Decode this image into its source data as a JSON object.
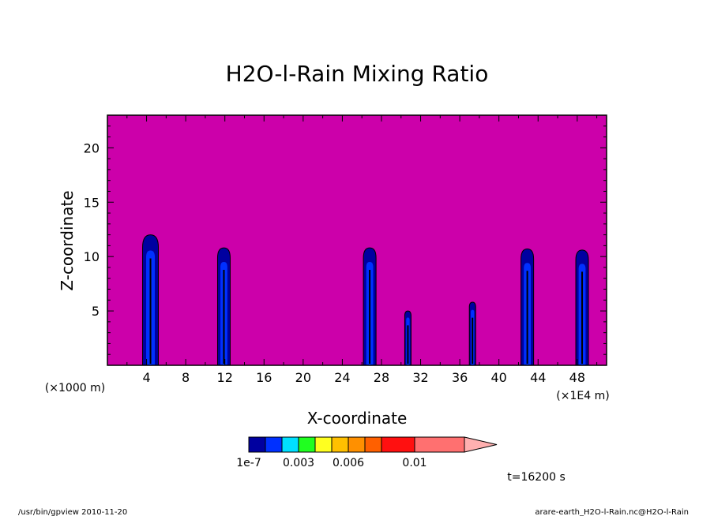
{
  "chart_data": {
    "type": "heatmap",
    "title": "H2O-l-Rain Mixing Ratio",
    "xlabel": "X-coordinate",
    "ylabel": "Z-coordinate",
    "x_unit_left": "(×1000 m)",
    "x_unit_right": "(×1E4 m)",
    "xlim": [
      0,
      51
    ],
    "ylim": [
      0,
      23
    ],
    "x_ticks": [
      4,
      8,
      12,
      16,
      20,
      24,
      28,
      32,
      36,
      40,
      44,
      48
    ],
    "y_ticks": [
      5,
      10,
      15,
      20
    ],
    "background_color": "#cc00aa",
    "rain_cells": [
      {
        "x": 4.4,
        "top": 12.0,
        "peak": "high"
      },
      {
        "x": 11.9,
        "top": 10.8,
        "peak": "medium"
      },
      {
        "x": 26.8,
        "top": 10.8,
        "peak": "medium"
      },
      {
        "x": 30.7,
        "top": 5.0,
        "peak": "low"
      },
      {
        "x": 37.3,
        "top": 5.8,
        "peak": "low"
      },
      {
        "x": 42.9,
        "top": 10.7,
        "peak": "medium"
      },
      {
        "x": 48.5,
        "top": 10.6,
        "peak": "medium"
      }
    ],
    "colorbar": {
      "colors": [
        "#0000a0",
        "#0030ff",
        "#00e0ff",
        "#20ff20",
        "#ffff20",
        "#ffc000",
        "#ff9000",
        "#ff6000",
        "#ff1010",
        "#ff7070"
      ],
      "extend_color": "#ffb0b0",
      "labels": [
        "1e-7",
        "0.003",
        "0.006",
        "0.01"
      ]
    },
    "time_label": "t=16200 s"
  },
  "footer": {
    "left": "/usr/bin/gpview  2010-11-20",
    "right": "arare-earth_H2O-l-Rain.nc@H2O-l-Rain"
  }
}
